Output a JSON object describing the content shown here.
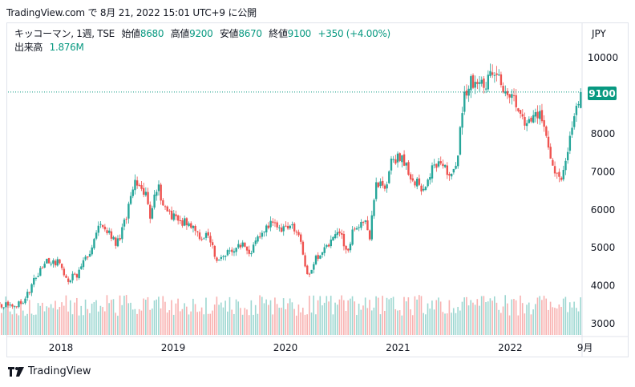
{
  "snapshot_header": "TradingView.com で 8月 21, 2022 15:01 UTC+9 に公開",
  "legend": {
    "symbol": "キッコーマン, 1週, TSE",
    "open_label": "始値",
    "open": "8680",
    "high_label": "高値",
    "high": "9200",
    "low_label": "安値",
    "low": "8670",
    "close_label": "終値",
    "close": "9100",
    "change": "+350 (+4.00%)",
    "volume_label": "出来高",
    "volume": "1.876M"
  },
  "currency": "JPY",
  "last_price_label": "9100",
  "branding": "TradingView",
  "colors": {
    "up": "#26a69a",
    "down": "#ef5350",
    "up_volume": "#26a69a",
    "down_volume": "#ef5350",
    "price_line": "#089981",
    "axis_text": "#131722",
    "border": "#e0e3eb"
  },
  "chart_data": {
    "type": "candlestick",
    "interval": "1 week",
    "y_axis": {
      "ticks": [
        3000,
        4000,
        5000,
        6000,
        7000,
        8000,
        9000,
        10000
      ],
      "tick_labels": [
        "3000",
        "4000",
        "5000",
        "6000",
        "7000",
        "8000",
        "",
        "10000"
      ],
      "range": [
        2650,
        10750
      ]
    },
    "x_axis": {
      "ticks": [
        "2018",
        "2019",
        "2020",
        "2021",
        "2022",
        "9月"
      ]
    },
    "last_price": 9100,
    "anchor_closes": [
      [
        "2017-06-01",
        3530
      ],
      [
        "2017-07-15",
        3480
      ],
      [
        "2017-09-01",
        3560
      ],
      [
        "2017-10-10",
        4200
      ],
      [
        "2017-11-15",
        4700
      ],
      [
        "2017-12-20",
        4620
      ],
      [
        "2018-01-25",
        4150
      ],
      [
        "2018-03-01",
        4350
      ],
      [
        "2018-04-15",
        5100
      ],
      [
        "2018-05-15",
        5700
      ],
      [
        "2018-06-15",
        5300
      ],
      [
        "2018-07-01",
        5050
      ],
      [
        "2018-08-01",
        5800
      ],
      [
        "2018-09-01",
        6700
      ],
      [
        "2018-10-01",
        6500
      ],
      [
        "2018-10-20",
        5800
      ],
      [
        "2018-11-10",
        6700
      ],
      [
        "2018-12-05",
        6000
      ],
      [
        "2019-01-15",
        5700
      ],
      [
        "2019-02-20",
        5700
      ],
      [
        "2019-03-25",
        5250
      ],
      [
        "2019-04-20",
        5400
      ],
      [
        "2019-05-25",
        4650
      ],
      [
        "2019-07-01",
        4900
      ],
      [
        "2019-08-10",
        5100
      ],
      [
        "2019-09-10",
        4900
      ],
      [
        "2019-10-10",
        5300
      ],
      [
        "2019-11-15",
        5600
      ],
      [
        "2019-12-15",
        5450
      ],
      [
        "2020-01-20",
        5700
      ],
      [
        "2020-02-15",
        5300
      ],
      [
        "2020-03-10",
        4200
      ],
      [
        "2020-03-25",
        4500
      ],
      [
        "2020-04-20",
        4850
      ],
      [
        "2020-05-20",
        5000
      ],
      [
        "2020-06-15",
        5500
      ],
      [
        "2020-07-20",
        4950
      ],
      [
        "2020-08-15",
        5600
      ],
      [
        "2020-09-15",
        5750
      ],
      [
        "2020-10-01",
        5300
      ],
      [
        "2020-10-20",
        6600
      ],
      [
        "2020-11-20",
        6600
      ],
      [
        "2020-12-15",
        7400
      ],
      [
        "2021-01-20",
        7250
      ],
      [
        "2021-02-20",
        6750
      ],
      [
        "2021-03-20",
        6600
      ],
      [
        "2021-04-20",
        7000
      ],
      [
        "2021-05-20",
        7350
      ],
      [
        "2021-06-15",
        6950
      ],
      [
        "2021-07-10",
        7100
      ],
      [
        "2021-07-25",
        8500
      ],
      [
        "2021-08-15",
        9300
      ],
      [
        "2021-09-15",
        9450
      ],
      [
        "2021-10-10",
        9200
      ],
      [
        "2021-11-01",
        9800
      ],
      [
        "2021-11-25",
        9500
      ],
      [
        "2021-12-15",
        9000
      ],
      [
        "2022-01-10",
        9250
      ],
      [
        "2022-02-01",
        8450
      ],
      [
        "2022-02-25",
        8100
      ],
      [
        "2022-03-20",
        8600
      ],
      [
        "2022-04-20",
        8300
      ],
      [
        "2022-05-15",
        7100
      ],
      [
        "2022-06-10",
        6700
      ],
      [
        "2022-06-25",
        7000
      ],
      [
        "2022-07-15",
        8050
      ],
      [
        "2022-08-05",
        8750
      ],
      [
        "2022-08-19",
        9100
      ]
    ],
    "volume_baseline_price": 2650
  }
}
